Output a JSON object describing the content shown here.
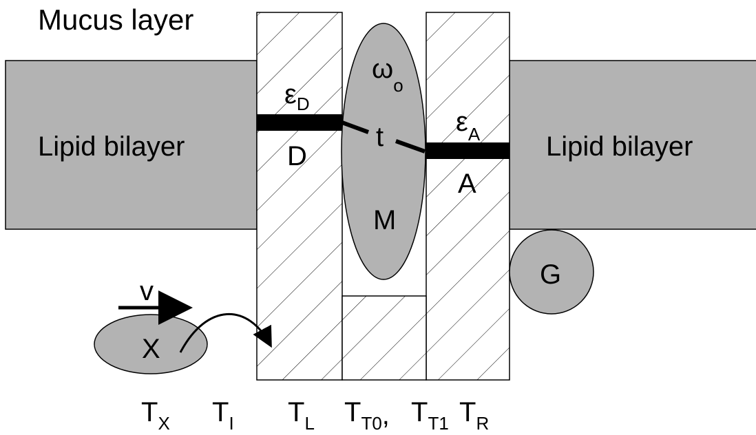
{
  "title": "Mucus layer",
  "membrane_left": "Lipid bilayer",
  "membrane_right": "Lipid bilayer",
  "donor": {
    "label": "D",
    "energy": {
      "base": "ε",
      "sub": "D"
    }
  },
  "acceptor": {
    "label": "A",
    "energy": {
      "base": "ε",
      "sub": "A"
    }
  },
  "mediator": {
    "label": "M",
    "frequency": {
      "base": "ω",
      "sub": "o"
    },
    "coupling": "t"
  },
  "g_protein": "G",
  "odorant": {
    "label": "X",
    "velocity": "v"
  },
  "temperatures": [
    {
      "base": "T",
      "sub": "X"
    },
    {
      "base": "T",
      "sub": "I"
    },
    {
      "base": "T",
      "sub": "L"
    },
    {
      "base": "T",
      "sub": "T0",
      "suffix": ","
    },
    {
      "base": "T",
      "sub": "T1"
    },
    {
      "base": "T",
      "sub": "R"
    }
  ]
}
